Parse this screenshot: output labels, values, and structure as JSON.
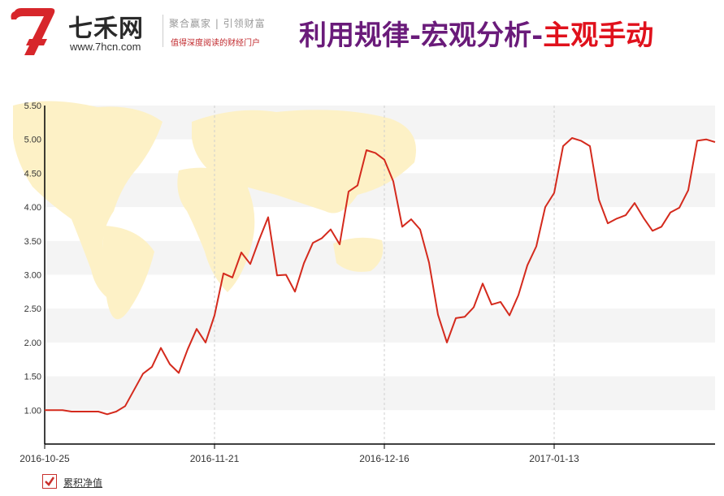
{
  "header": {
    "brand_name": "七禾网",
    "brand_url": "www.7hcn.com",
    "slogan_top": "聚合赢家 | 引领财富",
    "slogan_bottom": "值得深度阅读的财经门户",
    "headline_part1": "利用规律-宏观分析-",
    "headline_part2": "主观手动",
    "colors": {
      "purple": "#6a1b7a",
      "red": "#e0111c",
      "logo_red": "#d7262b"
    }
  },
  "chart_data": {
    "type": "line",
    "title": "",
    "xlabel": "",
    "ylabel": "",
    "ylim": [
      0.5,
      5.5
    ],
    "y_ticks": [
      "1.00",
      "1.50",
      "2.00",
      "2.50",
      "3.00",
      "3.50",
      "4.00",
      "4.50",
      "5.00",
      "5.50"
    ],
    "x_ticks": [
      {
        "label": "2016-10-25",
        "index": 0
      },
      {
        "label": "2016-11-21",
        "index": 19
      },
      {
        "label": "2016-12-16",
        "index": 38
      },
      {
        "label": "2017-01-13",
        "index": 57
      }
    ],
    "grid": true,
    "legend_position": "bottom-left",
    "color": "#d42a1d",
    "series": [
      {
        "name": "累积净值",
        "values": [
          1.0,
          1.0,
          1.0,
          0.98,
          0.98,
          0.98,
          0.98,
          0.94,
          0.98,
          1.06,
          1.3,
          1.54,
          1.64,
          1.92,
          1.68,
          1.55,
          1.9,
          2.2,
          2.0,
          2.4,
          3.02,
          2.96,
          3.33,
          3.16,
          3.52,
          3.85,
          2.99,
          3.0,
          2.75,
          3.17,
          3.47,
          3.54,
          3.67,
          3.45,
          4.23,
          4.32,
          4.84,
          4.8,
          4.7,
          4.38,
          3.71,
          3.82,
          3.67,
          3.18,
          2.41,
          2.0,
          2.36,
          2.38,
          2.52,
          2.87,
          2.56,
          2.6,
          2.4,
          2.7,
          3.14,
          3.42,
          4.0,
          4.21,
          4.9,
          5.02,
          4.98,
          4.9,
          4.11,
          3.76,
          3.83,
          3.88,
          4.06,
          3.84,
          3.65,
          3.71,
          3.92,
          3.99,
          4.25,
          4.98,
          5.0,
          4.96
        ]
      }
    ]
  },
  "legend": {
    "label": "累积净值"
  }
}
